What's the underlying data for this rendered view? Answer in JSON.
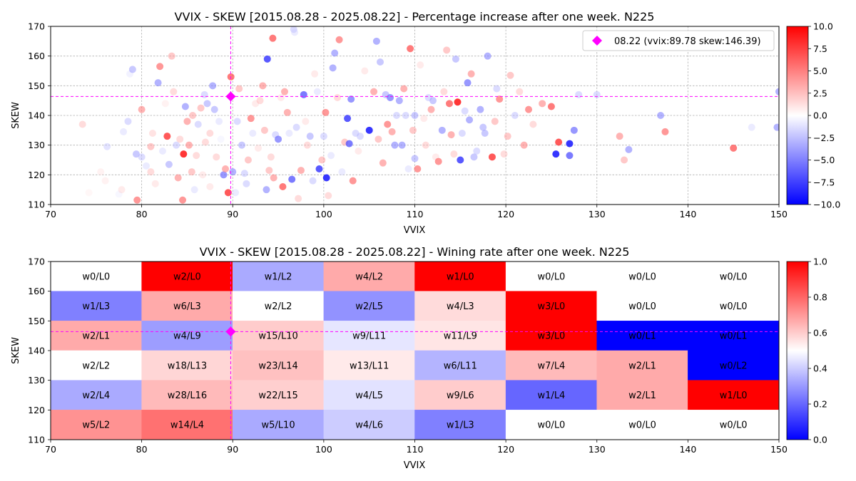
{
  "chart_data": [
    {
      "type": "scatter",
      "title": "VVIX - SKEW [2015.08.28 - 2025.08.22]  - Percentage increase after one week. N225",
      "xlabel": "VVIX",
      "ylabel": "SKEW",
      "xlim": [
        70,
        150
      ],
      "ylim": [
        110,
        170
      ],
      "xticks": [
        "70",
        "80",
        "90",
        "100",
        "110",
        "120",
        "130",
        "140",
        "150"
      ],
      "yticks": [
        "110",
        "120",
        "130",
        "140",
        "150",
        "160",
        "170"
      ],
      "grid": true,
      "legend_position": "top-right",
      "highlight": {
        "label": "08.22 (vvix:89.78 skew:146.39)",
        "x": 89.78,
        "y": 146.39,
        "color": "#ff00ff"
      },
      "colorbar": {
        "min": -10,
        "max": 10,
        "ticks": [
          "10.0",
          "7.5",
          "5.0",
          "2.5",
          "0.0",
          "−2.5",
          "−5.0",
          "−7.5",
          "−10.0"
        ],
        "colormap": "bwr"
      },
      "points": [
        [
          73.5,
          137,
          3
        ],
        [
          74.2,
          114,
          1
        ],
        [
          75.5,
          121,
          1.5
        ],
        [
          76.2,
          129.5,
          -2.5
        ],
        [
          76,
          118,
          1.5
        ],
        [
          77.5,
          113.5,
          -1
        ],
        [
          77.8,
          115,
          2
        ],
        [
          78,
          134.5,
          -2
        ],
        [
          78.5,
          138,
          -3
        ],
        [
          78.7,
          154,
          -1.5
        ],
        [
          79,
          155.5,
          -4
        ],
        [
          79.5,
          111.5,
          6
        ],
        [
          79.4,
          127,
          -4
        ],
        [
          80,
          142,
          5
        ],
        [
          80,
          126,
          -3
        ],
        [
          80.5,
          123,
          -2
        ],
        [
          81,
          121,
          3
        ],
        [
          81.2,
          134,
          2.5
        ],
        [
          81,
          129.5,
          4
        ],
        [
          81.5,
          117,
          2
        ],
        [
          81.8,
          151,
          -5
        ],
        [
          82,
          156.5,
          6
        ],
        [
          82.3,
          128,
          -2
        ],
        [
          82.6,
          144,
          1.5
        ],
        [
          82.8,
          133,
          8
        ],
        [
          83,
          123.5,
          -4
        ],
        [
          83.3,
          160,
          4
        ],
        [
          83.5,
          148,
          3
        ],
        [
          83.8,
          130,
          -3
        ],
        [
          84,
          119,
          5
        ],
        [
          84.2,
          132,
          3
        ],
        [
          84.5,
          111.5,
          6
        ],
        [
          84.6,
          127,
          9
        ],
        [
          84.8,
          143,
          -5
        ],
        [
          85,
          138,
          5
        ],
        [
          85.2,
          130,
          5
        ],
        [
          85.5,
          121,
          4
        ],
        [
          85.8,
          115,
          -2
        ],
        [
          85.6,
          140,
          4
        ],
        [
          86,
          126.5,
          3
        ],
        [
          86.2,
          137,
          -3
        ],
        [
          86.5,
          142.5,
          4
        ],
        [
          86.7,
          120,
          2
        ],
        [
          86.9,
          147,
          -3
        ],
        [
          87.2,
          144,
          -4
        ],
        [
          87,
          131,
          3
        ],
        [
          87.5,
          116,
          2
        ],
        [
          87.5,
          134,
          3
        ],
        [
          87.8,
          150,
          -5
        ],
        [
          88,
          142,
          -4
        ],
        [
          88.2,
          126,
          3
        ],
        [
          88.5,
          138,
          -2
        ],
        [
          88.7,
          132,
          -1
        ],
        [
          89,
          120,
          -6
        ],
        [
          89.2,
          122,
          5
        ],
        [
          89.5,
          114,
          8
        ],
        [
          89.8,
          153,
          7
        ],
        [
          90,
          121,
          -5
        ],
        [
          90.3,
          114,
          -2
        ],
        [
          90.5,
          138,
          -3
        ],
        [
          90.7,
          149,
          4
        ],
        [
          91,
          130,
          -4
        ],
        [
          91.3,
          120.5,
          -3
        ],
        [
          91.5,
          117,
          -3
        ],
        [
          91.7,
          125,
          4
        ],
        [
          92,
          139,
          6
        ],
        [
          92.2,
          134,
          -2
        ],
        [
          92.5,
          144,
          2
        ],
        [
          92.8,
          129,
          2
        ],
        [
          93,
          145,
          3
        ],
        [
          93.3,
          150,
          5
        ],
        [
          93.5,
          135,
          4
        ],
        [
          93.7,
          115,
          -5
        ],
        [
          93.8,
          159,
          -8
        ],
        [
          94,
          121.5,
          4
        ],
        [
          94.2,
          126,
          3
        ],
        [
          94.4,
          166,
          7
        ],
        [
          94.5,
          119,
          5
        ],
        [
          94.7,
          133.5,
          -3
        ],
        [
          95,
          132,
          -6
        ],
        [
          95.3,
          146,
          2
        ],
        [
          95.5,
          116,
          7
        ],
        [
          95.7,
          148,
          5
        ],
        [
          96,
          141,
          5
        ],
        [
          96.2,
          134,
          -2
        ],
        [
          96.5,
          118.5,
          -7
        ],
        [
          96.7,
          169,
          -3
        ],
        [
          96.8,
          168,
          -2
        ],
        [
          97,
          136,
          -3
        ],
        [
          97.2,
          112,
          3
        ],
        [
          97.5,
          121.5,
          5
        ],
        [
          97.8,
          147,
          -7
        ],
        [
          98,
          138,
          2
        ],
        [
          98.2,
          130,
          3
        ],
        [
          98.5,
          133,
          -4
        ],
        [
          98.8,
          118,
          -3
        ],
        [
          99,
          154,
          2
        ],
        [
          99.3,
          148,
          -2
        ],
        [
          99.5,
          122,
          -8
        ],
        [
          99.8,
          125,
          4
        ],
        [
          100,
          133,
          -3
        ],
        [
          100.2,
          141,
          6
        ],
        [
          100.3,
          119,
          -9
        ],
        [
          100.5,
          113,
          3
        ],
        [
          100.8,
          126.5,
          -2
        ],
        [
          101,
          156,
          -5
        ],
        [
          101.2,
          161,
          -5
        ],
        [
          101.5,
          146,
          3
        ],
        [
          101.7,
          165.5,
          6
        ],
        [
          102,
          121,
          -2
        ],
        [
          102.3,
          131,
          4
        ],
        [
          102.6,
          139,
          -8
        ],
        [
          102.8,
          130.5,
          -7
        ],
        [
          103,
          145.5,
          -6
        ],
        [
          103.2,
          118,
          6
        ],
        [
          103.5,
          134,
          -3
        ],
        [
          103.8,
          128,
          2
        ],
        [
          104,
          133,
          -3
        ],
        [
          104.5,
          155,
          2
        ],
        [
          105,
          135,
          -9
        ],
        [
          105.5,
          148,
          5
        ],
        [
          105.8,
          165,
          -5
        ],
        [
          106,
          132,
          4
        ],
        [
          106.2,
          158,
          -4
        ],
        [
          106.5,
          124,
          5
        ],
        [
          106.8,
          147,
          -4
        ],
        [
          107,
          137,
          6
        ],
        [
          107.3,
          146,
          -6
        ],
        [
          107.5,
          134.5,
          5
        ],
        [
          107.8,
          130,
          -5
        ],
        [
          108,
          140,
          -3
        ],
        [
          108.3,
          145,
          -5
        ],
        [
          108.6,
          130,
          -5
        ],
        [
          108.8,
          149,
          5
        ],
        [
          109,
          140,
          -3
        ],
        [
          109.3,
          122,
          -2
        ],
        [
          109.5,
          162.5,
          7
        ],
        [
          109.8,
          135,
          4
        ],
        [
          110,
          125.5,
          -4
        ],
        [
          110,
          140,
          -4
        ],
        [
          110.3,
          122,
          6
        ],
        [
          110.6,
          157,
          2
        ],
        [
          111,
          139,
          2
        ],
        [
          111.2,
          130,
          3
        ],
        [
          111.5,
          146,
          -3
        ],
        [
          111.8,
          142,
          5
        ],
        [
          112,
          145,
          -4
        ],
        [
          112.3,
          126,
          2
        ],
        [
          112.6,
          124.5,
          6
        ],
        [
          113,
          135,
          -5
        ],
        [
          113.2,
          148,
          3
        ],
        [
          113.5,
          162,
          4
        ],
        [
          113.8,
          144,
          7
        ],
        [
          114,
          133.5,
          5
        ],
        [
          114.3,
          127,
          3
        ],
        [
          114.5,
          159,
          -4
        ],
        [
          114.7,
          144.5,
          9
        ],
        [
          115,
          125,
          -8
        ],
        [
          115.2,
          134,
          -3
        ],
        [
          115.5,
          141.5,
          -3
        ],
        [
          115.8,
          151,
          -6
        ],
        [
          116,
          138.5,
          -5
        ],
        [
          116.2,
          154,
          5
        ],
        [
          116.5,
          126,
          -4
        ],
        [
          116.8,
          128,
          -3
        ],
        [
          117.2,
          142,
          -5
        ],
        [
          117.5,
          136,
          -4
        ],
        [
          117.7,
          134,
          -4
        ],
        [
          118,
          160,
          -5
        ],
        [
          118.5,
          126,
          8
        ],
        [
          118.8,
          138,
          4
        ],
        [
          119,
          149,
          -3
        ],
        [
          119.3,
          145.5,
          6
        ],
        [
          119.8,
          127,
          3
        ],
        [
          120.2,
          133,
          4
        ],
        [
          120.5,
          153.5,
          4
        ],
        [
          121,
          140,
          -3
        ],
        [
          121.5,
          148,
          3
        ],
        [
          122,
          130,
          5
        ],
        [
          122.5,
          142,
          6
        ],
        [
          123,
          137,
          3
        ],
        [
          124,
          144,
          5
        ],
        [
          125,
          143,
          7
        ],
        [
          125.5,
          127,
          -9
        ],
        [
          125.8,
          131,
          8
        ],
        [
          127,
          126.5,
          -7
        ],
        [
          127,
          130.5,
          -9
        ],
        [
          127.5,
          135,
          -6
        ],
        [
          128,
          147,
          -3
        ],
        [
          130,
          147,
          -3
        ],
        [
          132.5,
          133,
          5
        ],
        [
          133,
          125,
          4
        ],
        [
          133.5,
          128.5,
          -5
        ],
        [
          137,
          140,
          -5
        ],
        [
          137.5,
          134.5,
          6
        ],
        [
          145,
          129,
          7
        ],
        [
          147,
          136,
          -2
        ],
        [
          150,
          148,
          -5
        ],
        [
          149.8,
          136,
          -5
        ]
      ]
    },
    {
      "type": "heatmap",
      "title": "VVIX - SKEW [2015.08.28 - 2025.08.22]  - Wining rate after one week. N225",
      "xlabel": "VVIX",
      "ylabel": "SKEW",
      "xlim": [
        70,
        150
      ],
      "ylim": [
        110,
        170
      ],
      "xticks": [
        "70",
        "80",
        "90",
        "100",
        "110",
        "120",
        "130",
        "140",
        "150"
      ],
      "yticks": [
        "110",
        "120",
        "130",
        "140",
        "150",
        "160",
        "170"
      ],
      "x_bins": [
        70,
        80,
        90,
        100,
        110,
        120,
        130,
        140,
        150
      ],
      "y_bins": [
        110,
        120,
        130,
        140,
        150,
        160,
        170
      ],
      "highlight": {
        "x": 89.78,
        "y": 146.39,
        "color": "#ff00ff"
      },
      "colorbar": {
        "min": 0,
        "max": 1,
        "ticks": [
          "1.0",
          "0.8",
          "0.6",
          "0.4",
          "0.2",
          "0.0"
        ],
        "colormap": "bwr"
      },
      "rows_top_to_bottom": [
        {
          "skew_range": [
            160,
            170
          ],
          "labels": [
            "w0/L0",
            "w2/L0",
            "w1/L2",
            "w4/L2",
            "w1/L0",
            "w0/L0",
            "w0/L0",
            "w0/L0"
          ],
          "rates": [
            0.5,
            1.0,
            0.333,
            0.667,
            1.0,
            0.5,
            0.5,
            0.5
          ]
        },
        {
          "skew_range": [
            150,
            160
          ],
          "labels": [
            "w1/L3",
            "w6/L3",
            "w2/L2",
            "w2/L5",
            "w4/L3",
            "w3/L0",
            "w0/L0",
            "w0/L0"
          ],
          "rates": [
            0.25,
            0.667,
            0.5,
            0.286,
            0.571,
            1.0,
            0.5,
            0.5
          ]
        },
        {
          "skew_range": [
            140,
            150
          ],
          "labels": [
            "w2/L1",
            "w4/L9",
            "w15/L10",
            "w9/L11",
            "w11/L9",
            "w3/L0",
            "w0/L1",
            "w0/L1"
          ],
          "rates": [
            0.667,
            0.308,
            0.6,
            0.45,
            0.55,
            1.0,
            0.0,
            0.0
          ]
        },
        {
          "skew_range": [
            130,
            140
          ],
          "labels": [
            "w2/L2",
            "w18/L13",
            "w23/L14",
            "w13/L11",
            "w6/L11",
            "w7/L4",
            "w2/L1",
            "w0/L2"
          ],
          "rates": [
            0.5,
            0.581,
            0.622,
            0.542,
            0.353,
            0.636,
            0.667,
            0.0
          ]
        },
        {
          "skew_range": [
            120,
            130
          ],
          "labels": [
            "w2/L4",
            "w28/L16",
            "w22/L15",
            "w4/L5",
            "w9/L6",
            "w1/L4",
            "w2/L1",
            "w1/L0"
          ],
          "rates": [
            0.333,
            0.636,
            0.595,
            0.444,
            0.6,
            0.2,
            0.667,
            1.0
          ]
        },
        {
          "skew_range": [
            110,
            120
          ],
          "labels": [
            "w5/L2",
            "w14/L4",
            "w5/L10",
            "w4/L6",
            "w1/L3",
            "w0/L0",
            "w0/L0",
            "w0/L0"
          ],
          "rates": [
            0.714,
            0.778,
            0.333,
            0.4,
            0.25,
            0.5,
            0.5,
            0.5
          ]
        }
      ]
    }
  ]
}
